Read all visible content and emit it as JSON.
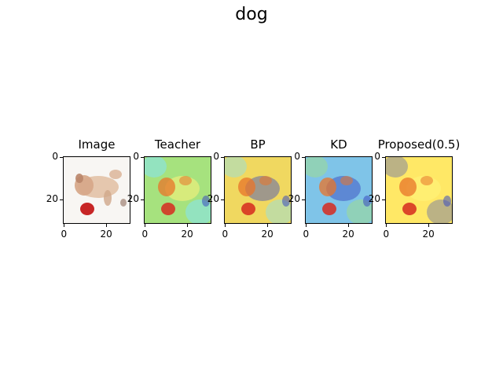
{
  "figure": {
    "title": "dog"
  },
  "panels": [
    {
      "title": "Image",
      "kind": "photo"
    },
    {
      "title": "Teacher",
      "kind": "heatmap"
    },
    {
      "title": "BP",
      "kind": "heatmap"
    },
    {
      "title": "KD",
      "kind": "heatmap"
    },
    {
      "title": "Proposed(0.5)",
      "kind": "heatmap"
    }
  ],
  "chart_data": {
    "type": "heatmap",
    "title": "dog",
    "subplots": [
      "Image",
      "Teacher",
      "BP",
      "KD",
      "Proposed(0.5)"
    ],
    "xlim": [
      0,
      31
    ],
    "ylim": [
      31,
      0
    ],
    "xticks": [
      0,
      20
    ],
    "yticks": [
      0,
      20
    ],
    "colormap": "jet"
  },
  "colors": {
    "jet_blue": "#3b4cc0",
    "jet_cyan": "#7fe3ff",
    "jet_yellow": "#fff37a",
    "jet_red": "#d62a1e"
  }
}
